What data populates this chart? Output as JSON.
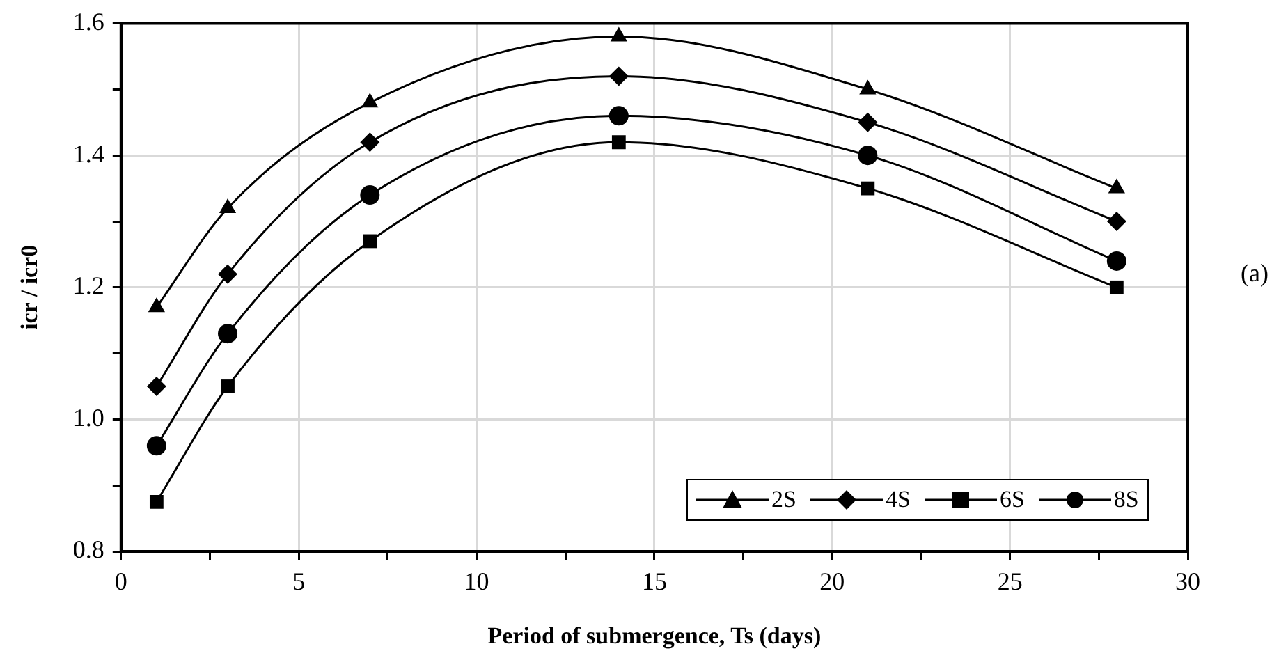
{
  "chart_data": {
    "type": "line",
    "xlabel": "Period of submergence, Ts (days)",
    "ylabel": "icr / icr0",
    "annotations": [
      "(a)"
    ],
    "x": [
      1,
      3,
      7,
      14,
      21,
      28
    ],
    "xlim": [
      0,
      30
    ],
    "xticks": [
      0,
      {
        "value": 2.5,
        "label": null
      },
      5,
      {
        "value": 7.5,
        "label": null
      },
      10,
      {
        "value": 12.5,
        "label": null
      },
      15,
      {
        "value": 17.5,
        "label": null
      },
      20,
      {
        "value": 22.5,
        "label": null
      },
      25,
      {
        "value": 27.5,
        "label": null
      },
      30
    ],
    "ylim": [
      0.8,
      1.6
    ],
    "yticks": [
      0.8,
      {
        "value": 0.9,
        "label": null
      },
      {
        "value": 1,
        "label": "1.0"
      },
      {
        "value": 1.1,
        "label": null
      },
      1.2,
      {
        "value": 1.3,
        "label": null
      },
      1.4,
      {
        "value": 1.5,
        "label": null
      },
      1.6
    ],
    "grid": true,
    "legend": "bottom right",
    "line_style": "solid",
    "series": [
      {
        "name": "2S",
        "color": "#000000",
        "marker": "triangle",
        "values": [
          1.17,
          1.32,
          1.48,
          1.58,
          1.5,
          1.35
        ]
      },
      {
        "name": "4S",
        "color": "#000000",
        "marker": "diamond",
        "values": [
          1.05,
          1.22,
          1.42,
          1.52,
          1.45,
          1.3
        ]
      },
      {
        "name": "6S",
        "color": "#000000",
        "marker": "square",
        "values": [
          0.875,
          1.05,
          1.27,
          1.42,
          1.35,
          1.2
        ]
      },
      {
        "name": "8S",
        "color": "#000000",
        "marker": "circle",
        "values": [
          0.96,
          1.13,
          1.34,
          1.46,
          1.4,
          1.24
        ]
      }
    ]
  }
}
